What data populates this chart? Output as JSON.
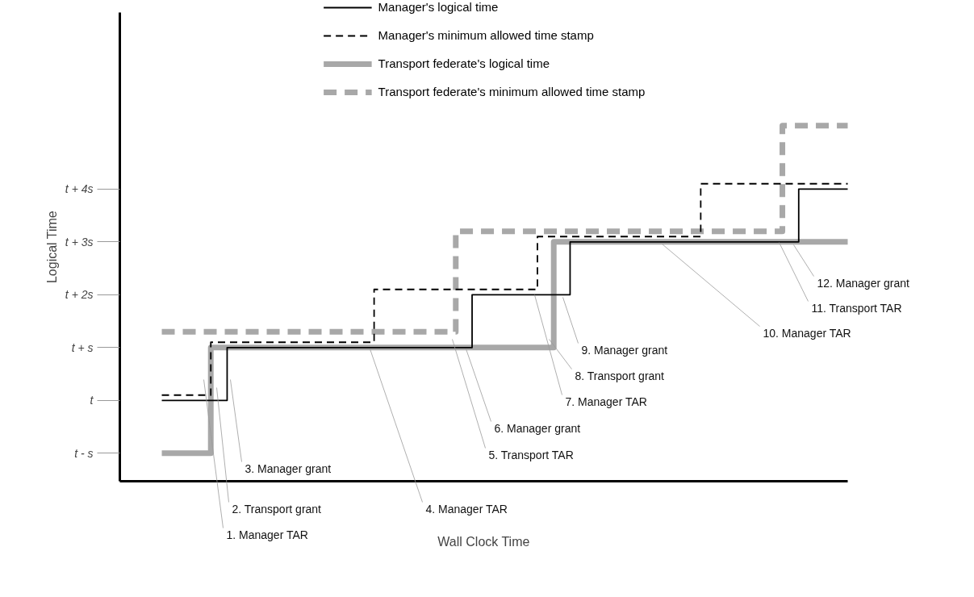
{
  "chart_data": {
    "type": "step",
    "xlabel": "Wall Clock Time",
    "ylabel": "Logical Time",
    "categories": [
      null,
      null,
      null,
      null,
      null,
      null,
      null,
      null,
      null,
      null,
      null,
      null,
      null,
      null,
      null,
      null,
      null,
      null,
      null,
      null,
      null,
      null,
      null,
      null,
      null,
      null,
      null,
      null,
      null,
      null,
      null,
      null,
      null,
      null,
      null,
      null,
      null,
      null,
      null,
      null,
      null,
      null,
      null
    ],
    "series": [
      {
        "name": "Manager's logical time",
        "color": "#000000",
        "line_style": "solid",
        "values": [
          0,
          0,
          0,
          0,
          1,
          1,
          1,
          1,
          1,
          1,
          1,
          1,
          1,
          1,
          1,
          1,
          1,
          1,
          1,
          2,
          2,
          2,
          2,
          2,
          2,
          3,
          3,
          3,
          3,
          3,
          3,
          3,
          3,
          3,
          3,
          3,
          3,
          3,
          3,
          4,
          4,
          4,
          4
        ]
      },
      {
        "name": "Manager's minimum allowed time stamp",
        "color": "#000000",
        "line_style": "dashed",
        "values": [
          0.1,
          0.1,
          0.1,
          1.1,
          1.1,
          1.1,
          1.1,
          1.1,
          1.1,
          1.1,
          1.1,
          1.1,
          1.1,
          2.1,
          2.1,
          2.1,
          2.1,
          2.1,
          2.1,
          2.1,
          2.1,
          2.1,
          2.1,
          3.1,
          3.1,
          3.1,
          3.1,
          3.1,
          3.1,
          3.1,
          3.1,
          3.1,
          3.1,
          4.1,
          4.1,
          4.1,
          4.1,
          4.1,
          4.1,
          4.1,
          4.1,
          4.1,
          4.1
        ]
      },
      {
        "name": "Transport federate's logical time",
        "color": "#a8a8a8",
        "line_style": "solid",
        "values": [
          -1,
          -1,
          -1,
          1,
          1,
          1,
          1,
          1,
          1,
          1,
          1,
          1,
          1,
          1,
          1,
          1,
          1,
          1,
          1,
          1,
          1,
          1,
          1,
          1,
          3,
          3,
          3,
          3,
          3,
          3,
          3,
          3,
          3,
          3,
          3,
          3,
          3,
          3,
          3,
          3,
          3,
          3,
          3
        ]
      },
      {
        "name": "Transport federate's minimum allowed time stamp",
        "color": "#a8a8a8",
        "line_style": "dashed",
        "values": [
          1.3,
          1.3,
          1.3,
          1.3,
          1.3,
          1.3,
          1.3,
          1.3,
          1.3,
          1.3,
          1.3,
          1.3,
          1.3,
          1.3,
          1.3,
          1.3,
          1.3,
          1.3,
          3.2,
          3.2,
          3.2,
          3.2,
          3.2,
          3.2,
          3.2,
          3.2,
          3.2,
          3.2,
          3.2,
          3.2,
          3.2,
          3.2,
          3.2,
          3.2,
          3.2,
          3.2,
          3.2,
          3.2,
          5.2,
          5.2,
          5.2,
          5.2,
          5.2
        ]
      }
    ],
    "ylim": [
      -1.53,
      7.34
    ],
    "yticks": [
      {
        "value": -1,
        "label": "t - s"
      },
      {
        "value": 0,
        "label": "t"
      },
      {
        "value": 1,
        "label": "t + s"
      },
      {
        "value": 2,
        "label": "t + 2s"
      },
      {
        "value": 3,
        "label": "t + 3s"
      },
      {
        "value": 4,
        "label": "t + 4s"
      }
    ],
    "annotations": [
      "1. Manager TAR",
      "2. Transport grant",
      "3. Manager grant",
      "4. Manager TAR",
      "5. Transport TAR",
      "6. Manager grant",
      "7. Manager TAR",
      "8. Transport grant",
      "9. Manager grant",
      "10. Manager TAR",
      "11. Transport TAR",
      "12. Manager grant"
    ],
    "tick_labels": "y",
    "grid": false,
    "legend": "top",
    "marker": "none"
  }
}
